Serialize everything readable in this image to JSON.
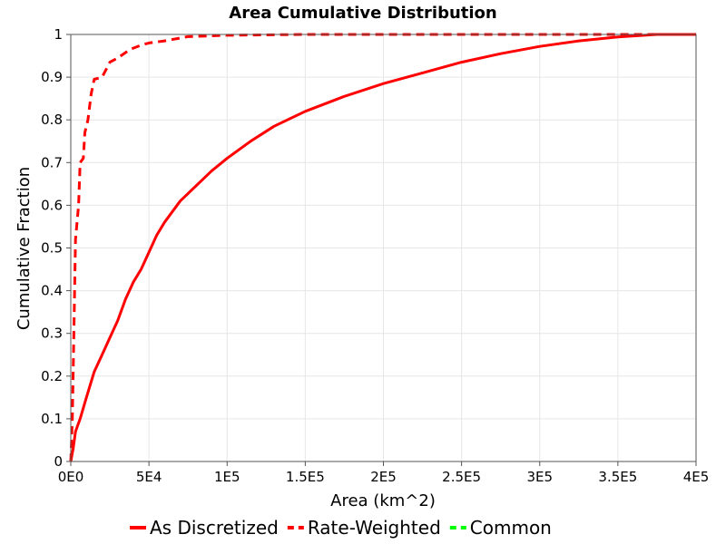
{
  "chart_data": {
    "type": "line",
    "title": "Area Cumulative Distribution",
    "xlabel": "Area (km^2)",
    "ylabel": "Cumulative Fraction",
    "xlim": [
      0,
      400000
    ],
    "ylim": [
      0,
      1
    ],
    "grid": true,
    "legend_position": "bottom",
    "x_ticks": [
      {
        "value": 0,
        "label": "0E0"
      },
      {
        "value": 50000,
        "label": "5E4"
      },
      {
        "value": 100000,
        "label": "1E5"
      },
      {
        "value": 150000,
        "label": "1.5E5"
      },
      {
        "value": 200000,
        "label": "2E5"
      },
      {
        "value": 250000,
        "label": "2.5E5"
      },
      {
        "value": 300000,
        "label": "3E5"
      },
      {
        "value": 350000,
        "label": "3.5E5"
      },
      {
        "value": 400000,
        "label": "4E5"
      }
    ],
    "y_ticks": [
      {
        "value": 0,
        "label": "0"
      },
      {
        "value": 0.1,
        "label": "0.1"
      },
      {
        "value": 0.2,
        "label": "0.2"
      },
      {
        "value": 0.3,
        "label": "0.3"
      },
      {
        "value": 0.4,
        "label": "0.4"
      },
      {
        "value": 0.5,
        "label": "0.5"
      },
      {
        "value": 0.6,
        "label": "0.6"
      },
      {
        "value": 0.7,
        "label": "0.7"
      },
      {
        "value": 0.8,
        "label": "0.8"
      },
      {
        "value": 0.9,
        "label": "0.9"
      },
      {
        "value": 1,
        "label": "1"
      }
    ],
    "series": [
      {
        "name": "As Discretized",
        "color": "#ff0000",
        "style": "solid",
        "points": [
          [
            0,
            0
          ],
          [
            1500,
            0.03
          ],
          [
            3000,
            0.07
          ],
          [
            6000,
            0.1
          ],
          [
            10000,
            0.15
          ],
          [
            15000,
            0.21
          ],
          [
            20000,
            0.25
          ],
          [
            25000,
            0.29
          ],
          [
            30000,
            0.33
          ],
          [
            35000,
            0.38
          ],
          [
            40000,
            0.42
          ],
          [
            45000,
            0.45
          ],
          [
            50000,
            0.49
          ],
          [
            55000,
            0.53
          ],
          [
            60000,
            0.56
          ],
          [
            70000,
            0.61
          ],
          [
            80000,
            0.645
          ],
          [
            90000,
            0.68
          ],
          [
            100000,
            0.71
          ],
          [
            115000,
            0.75
          ],
          [
            130000,
            0.785
          ],
          [
            150000,
            0.82
          ],
          [
            175000,
            0.855
          ],
          [
            200000,
            0.885
          ],
          [
            225000,
            0.91
          ],
          [
            250000,
            0.935
          ],
          [
            275000,
            0.955
          ],
          [
            300000,
            0.972
          ],
          [
            325000,
            0.985
          ],
          [
            350000,
            0.994
          ],
          [
            375000,
            1.0
          ],
          [
            400000,
            1.0
          ]
        ]
      },
      {
        "name": "Rate-Weighted",
        "color": "#ff0000",
        "style": "dashed",
        "points": [
          [
            0,
            0
          ],
          [
            1000,
            0.1
          ],
          [
            2000,
            0.3
          ],
          [
            3000,
            0.52
          ],
          [
            5000,
            0.6
          ],
          [
            6000,
            0.7
          ],
          [
            8000,
            0.71
          ],
          [
            9000,
            0.77
          ],
          [
            11000,
            0.8
          ],
          [
            13000,
            0.86
          ],
          [
            15000,
            0.895
          ],
          [
            20000,
            0.9
          ],
          [
            25000,
            0.935
          ],
          [
            30000,
            0.945
          ],
          [
            38000,
            0.965
          ],
          [
            45000,
            0.975
          ],
          [
            50000,
            0.98
          ],
          [
            60000,
            0.985
          ],
          [
            75000,
            0.995
          ],
          [
            100000,
            0.998
          ],
          [
            150000,
            1.0
          ],
          [
            400000,
            1.0
          ]
        ]
      },
      {
        "name": "Common",
        "color": "#00ff00",
        "style": "dashed",
        "points": []
      }
    ]
  }
}
